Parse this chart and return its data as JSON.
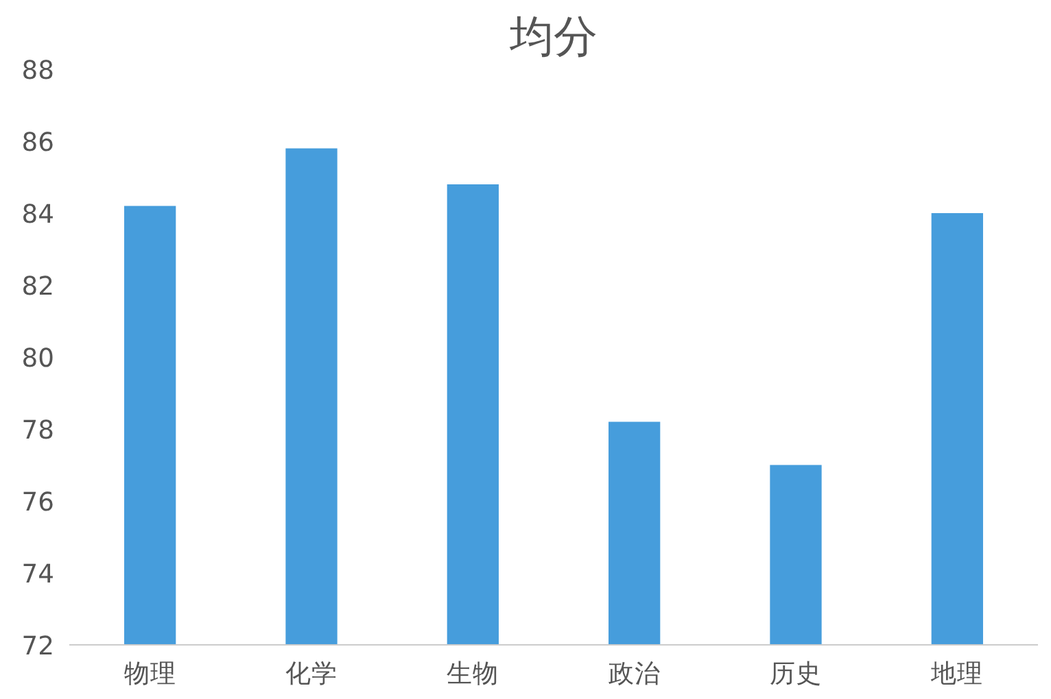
{
  "chart_data": {
    "type": "bar",
    "title": "均分",
    "categories": [
      "物理",
      "化学",
      "生物",
      "政治",
      "历史",
      "地理"
    ],
    "values": [
      84.2,
      85.8,
      84.8,
      78.2,
      77.0,
      84.0
    ],
    "color": "#469ddc",
    "ylim": [
      72,
      88
    ],
    "yticks": [
      72,
      74,
      76,
      78,
      80,
      82,
      84,
      86,
      88
    ],
    "grid": false
  }
}
